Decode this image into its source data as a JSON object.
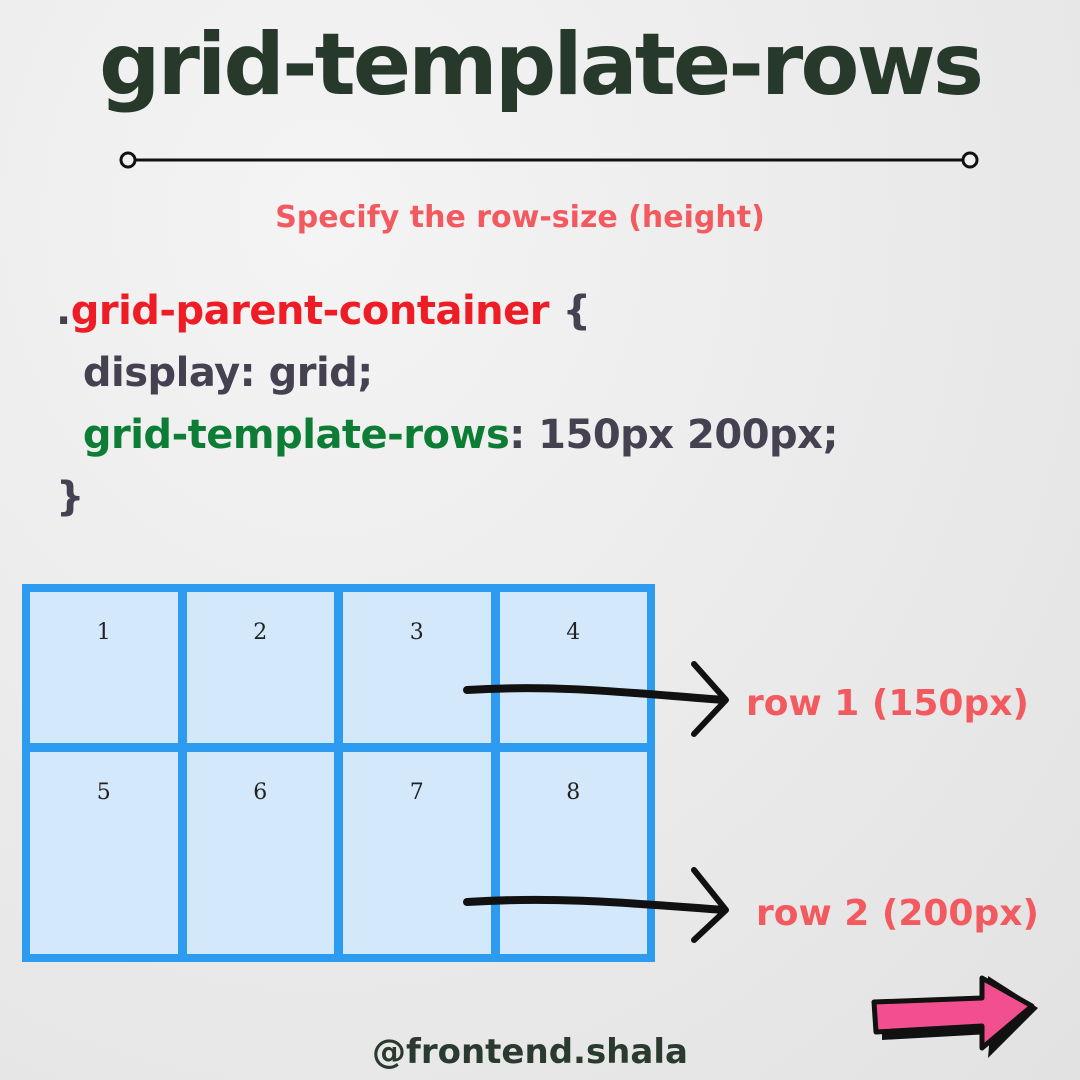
{
  "title": "grid-template-rows",
  "subtitle": "Specify the row-size (height)",
  "code": {
    "selector_dot": ".",
    "selector": "grid-parent-container",
    "open_brace": " {",
    "line2": "  display: grid;",
    "prop_indent": "  ",
    "prop_name": "grid-template-rows",
    "prop_value": ": 150px 200px;",
    "close_brace": "}"
  },
  "grid": {
    "cells": [
      "1",
      "2",
      "3",
      "4",
      "5",
      "6",
      "7",
      "8"
    ]
  },
  "labels": {
    "row1": "row 1 (150px)",
    "row2": "row 2 (200px)"
  },
  "handle": "@frontend.shala",
  "colors": {
    "title": "#26392b",
    "accent": "#f25a5f",
    "selector": "#ee1c25",
    "property": "#0d7c35",
    "grid_border": "#2d9bef",
    "grid_cell": "#d3e8fb",
    "next_arrow": "#f24f8f"
  },
  "icons": {
    "divider": "line-with-dot-ends-icon",
    "pointer": "hand-drawn-arrow-icon",
    "next": "next-arrow-icon"
  }
}
